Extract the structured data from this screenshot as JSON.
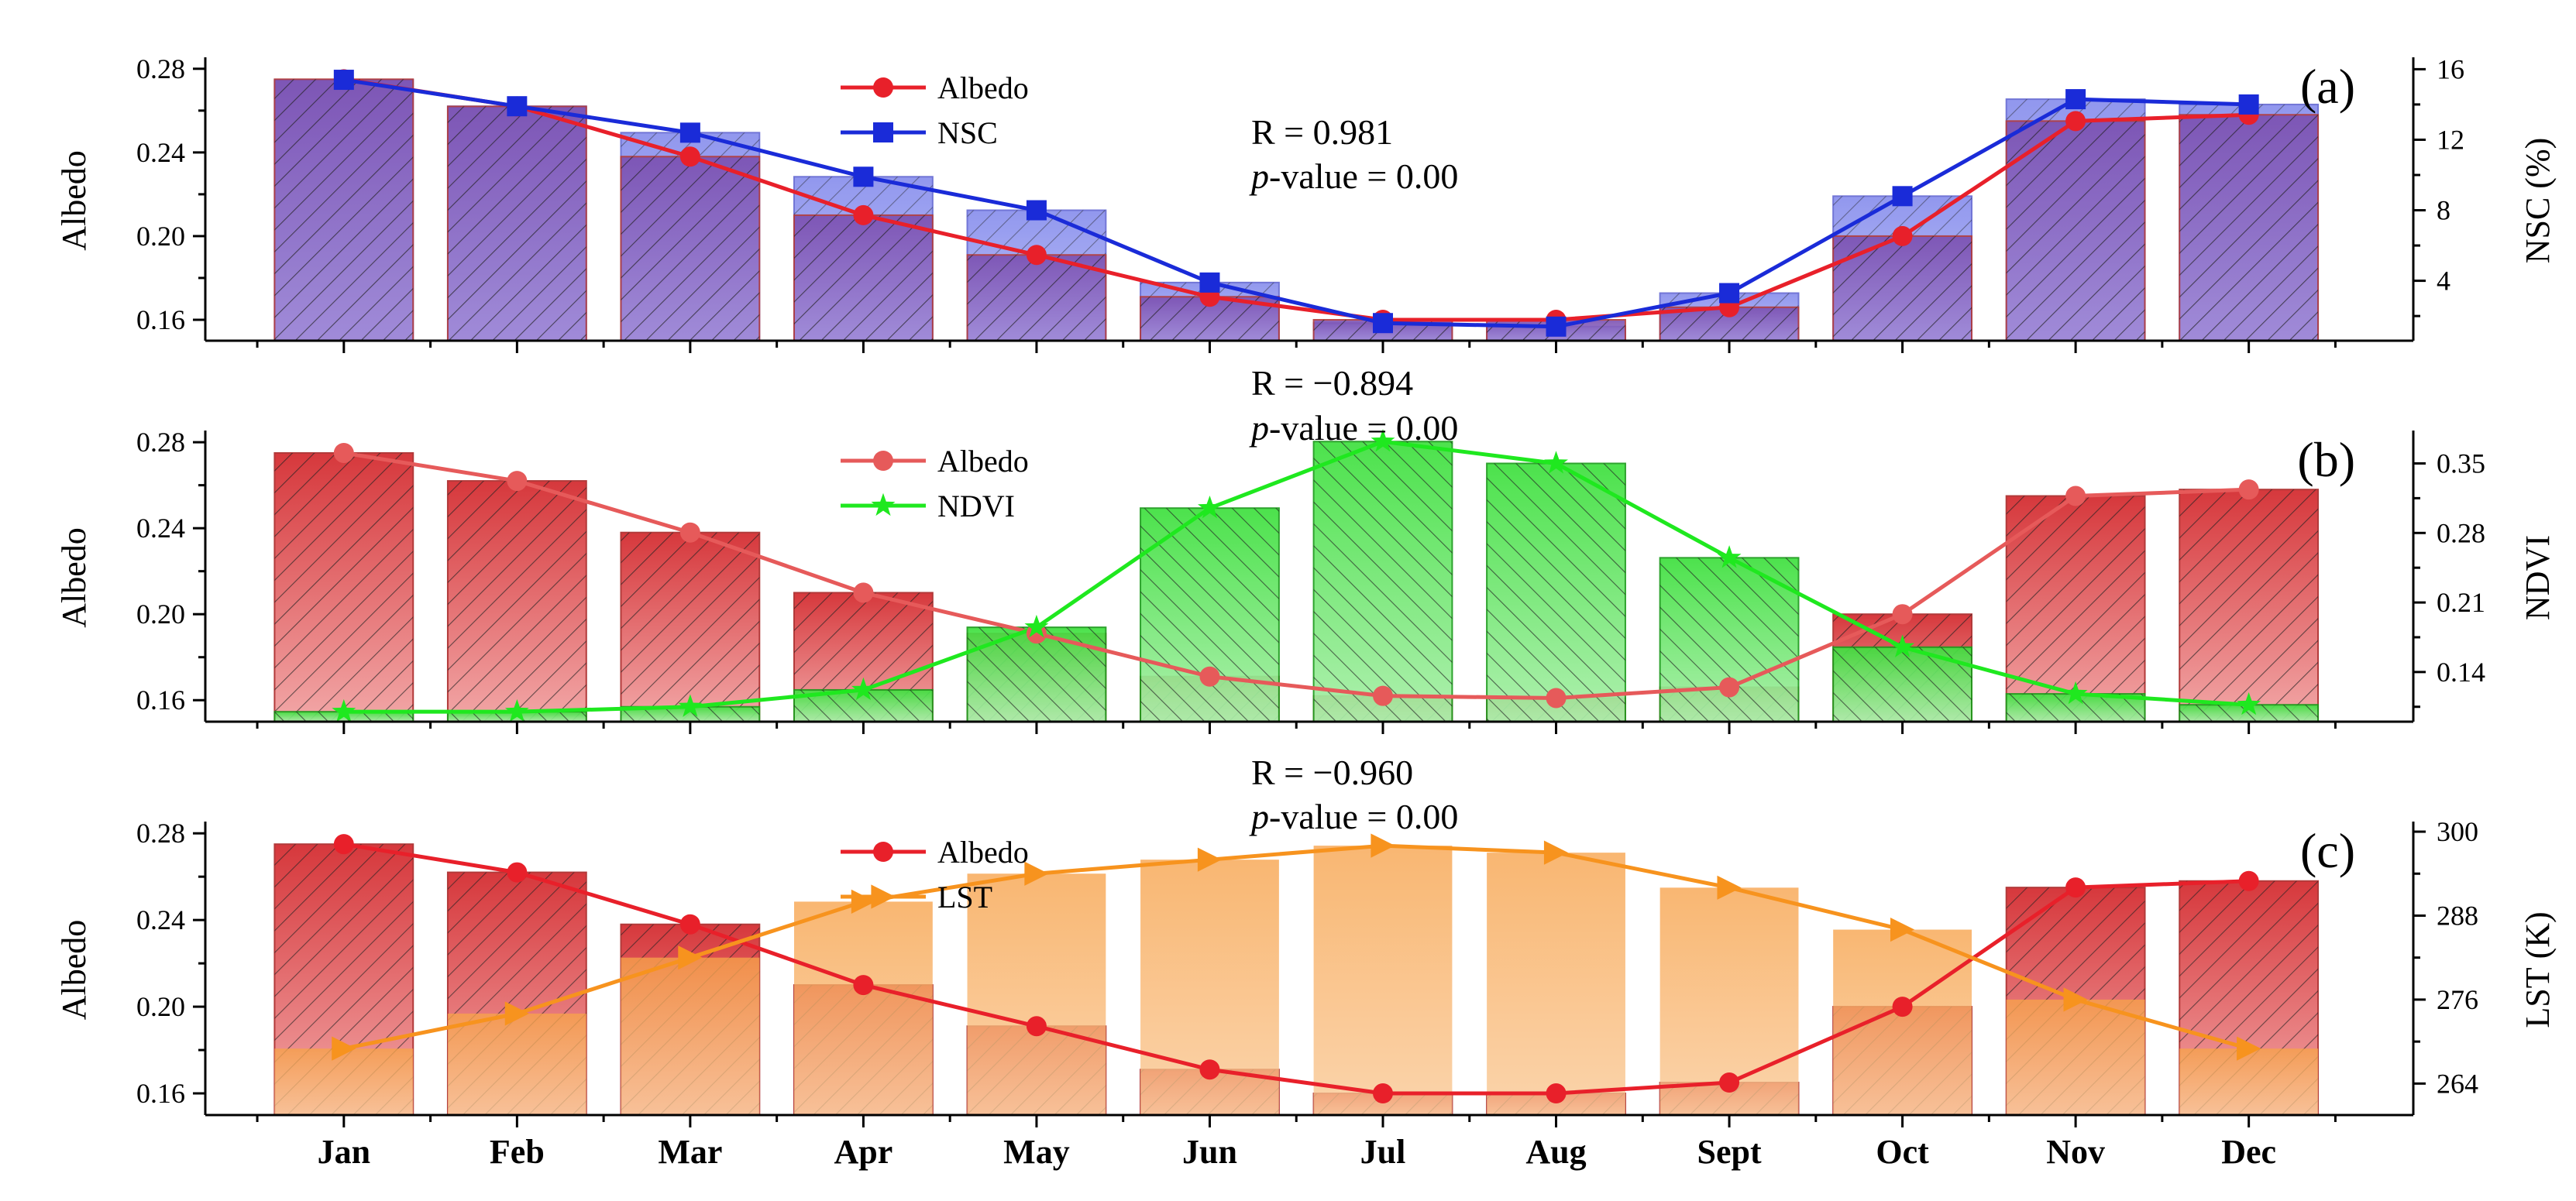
{
  "chart_data": [
    {
      "panel": "(a)",
      "type": "bar",
      "categories": [
        "Jan",
        "Feb",
        "Mar",
        "Apr",
        "May",
        "Jun",
        "Jul",
        "Aug",
        "Sept",
        "Oct",
        "Nov",
        "Dec"
      ],
      "ylabel": "Albedo",
      "ylim": [
        0.15,
        0.284
      ],
      "yticks": [
        "0.16",
        "0.20",
        "0.24",
        "0.28"
      ],
      "y2label": "NSC (%)",
      "y2lim": [
        0.6,
        16.5
      ],
      "y2ticks": [
        "4",
        "8",
        "12",
        "16"
      ],
      "stats": {
        "r": "R = 0.981",
        "p_prefix": "p",
        "p_suffix": "-value = 0.00"
      },
      "series": [
        {
          "name": "Albedo",
          "axis": "left",
          "color": "#e8202a",
          "marker": "circle",
          "values": [
            0.275,
            0.262,
            0.238,
            0.21,
            0.191,
            0.171,
            0.16,
            0.16,
            0.166,
            0.2,
            0.255,
            0.258
          ]
        },
        {
          "name": "NSC",
          "axis": "right",
          "color": "#1a2bd8",
          "marker": "square",
          "values": [
            15.4,
            13.9,
            12.4,
            9.9,
            8.0,
            3.9,
            1.6,
            1.4,
            3.3,
            8.8,
            14.3,
            14.0
          ]
        }
      ]
    },
    {
      "panel": "(b)",
      "type": "bar",
      "categories": [
        "Jan",
        "Feb",
        "Mar",
        "Apr",
        "May",
        "Jun",
        "Jul",
        "Aug",
        "Sept",
        "Oct",
        "Nov",
        "Dec"
      ],
      "ylabel": "Albedo",
      "ylim": [
        0.15,
        0.284
      ],
      "yticks": [
        "0.16",
        "0.20",
        "0.24",
        "0.28"
      ],
      "y2label": "NDVI",
      "y2lim": [
        0.09,
        0.38
      ],
      "y2ticks": [
        "0.14",
        "0.21",
        "0.28",
        "0.35"
      ],
      "stats": {
        "r": "R = −0.894",
        "p_prefix": "p",
        "p_suffix": "-value = 0.00"
      },
      "series": [
        {
          "name": "Albedo",
          "axis": "left",
          "color": "#e65a5a",
          "marker": "circle",
          "values": [
            0.275,
            0.262,
            0.238,
            0.21,
            0.191,
            0.171,
            0.162,
            0.161,
            0.166,
            0.2,
            0.255,
            0.258
          ]
        },
        {
          "name": "NDVI",
          "axis": "right",
          "color": "#1fe81f",
          "marker": "star",
          "values": [
            0.1,
            0.1,
            0.105,
            0.122,
            0.185,
            0.305,
            0.372,
            0.35,
            0.255,
            0.165,
            0.118,
            0.107
          ]
        }
      ]
    },
    {
      "panel": "(c)",
      "type": "bar",
      "categories": [
        "Jan",
        "Feb",
        "Mar",
        "Apr",
        "May",
        "Jun",
        "Jul",
        "Aug",
        "Sept",
        "Oct",
        "Nov",
        "Dec"
      ],
      "ylabel": "Albedo",
      "ylim": [
        0.15,
        0.284
      ],
      "yticks": [
        "0.16",
        "0.20",
        "0.24",
        "0.28"
      ],
      "y2label": "LST (K)",
      "y2lim": [
        259.5,
        301
      ],
      "y2ticks": [
        "264",
        "276",
        "288",
        "300"
      ],
      "stats": {
        "r": "R = −0.960",
        "p_prefix": "p",
        "p_suffix": "-value = 0.00"
      },
      "series": [
        {
          "name": "Albedo",
          "axis": "left",
          "color": "#e8202a",
          "marker": "circle",
          "values": [
            0.275,
            0.262,
            0.238,
            0.21,
            0.191,
            0.171,
            0.16,
            0.16,
            0.165,
            0.2,
            0.255,
            0.258
          ]
        },
        {
          "name": "LST",
          "axis": "right",
          "color": "#f7931e",
          "marker": "triangle",
          "values": [
            269,
            274,
            282,
            290,
            294,
            296,
            298,
            297,
            292,
            286,
            276,
            269
          ]
        }
      ]
    }
  ]
}
